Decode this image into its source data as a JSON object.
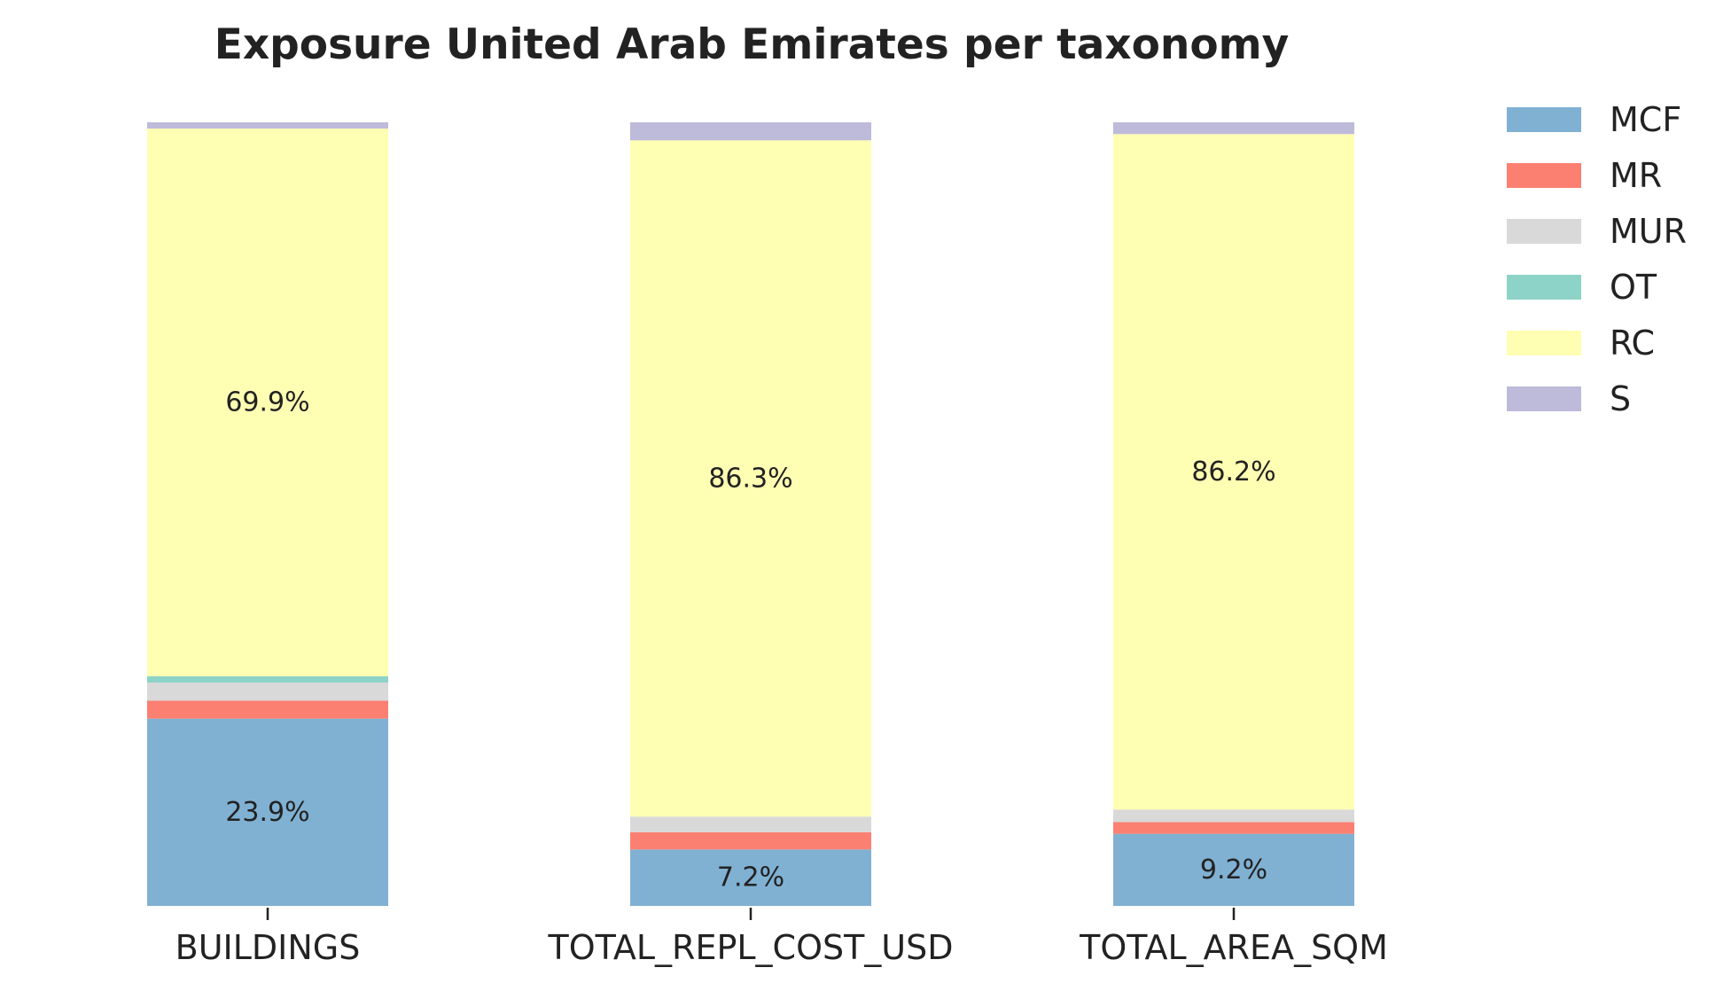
{
  "chart_data": {
    "type": "bar",
    "stacked": true,
    "normalized": true,
    "title": "Exposure United Arab Emirates per taxonomy",
    "categories": [
      "BUILDINGS",
      "TOTAL_REPL_COST_USD",
      "TOTAL_AREA_SQM"
    ],
    "series": [
      {
        "name": "MCF",
        "color": "#80b1d3",
        "values": [
          23.9,
          7.2,
          9.2
        ]
      },
      {
        "name": "MR",
        "color": "#fb8072",
        "values": [
          2.3,
          2.2,
          1.5
        ]
      },
      {
        "name": "MUR",
        "color": "#d9d9d9",
        "values": [
          2.3,
          2.0,
          1.6
        ]
      },
      {
        "name": "OT",
        "color": "#8dd3c7",
        "values": [
          0.8,
          0.0,
          0.0
        ]
      },
      {
        "name": "RC",
        "color": "#ffffb3",
        "values": [
          69.9,
          86.3,
          86.2
        ]
      },
      {
        "name": "S",
        "color": "#bebada",
        "values": [
          0.8,
          2.3,
          1.5
        ]
      }
    ],
    "data_labels": [
      {
        "category": "BUILDINGS",
        "series": "MCF",
        "text": "23.9%"
      },
      {
        "category": "BUILDINGS",
        "series": "RC",
        "text": "69.9%"
      },
      {
        "category": "TOTAL_REPL_COST_USD",
        "series": "MCF",
        "text": "7.2%"
      },
      {
        "category": "TOTAL_REPL_COST_USD",
        "series": "RC",
        "text": "86.3%"
      },
      {
        "category": "TOTAL_AREA_SQM",
        "series": "MCF",
        "text": "9.2%"
      },
      {
        "category": "TOTAL_AREA_SQM",
        "series": "RC",
        "text": "86.2%"
      }
    ],
    "ylim": [
      0,
      100
    ],
    "xlabel": "",
    "ylabel": "",
    "grid": false,
    "legend_position": "top-right"
  }
}
